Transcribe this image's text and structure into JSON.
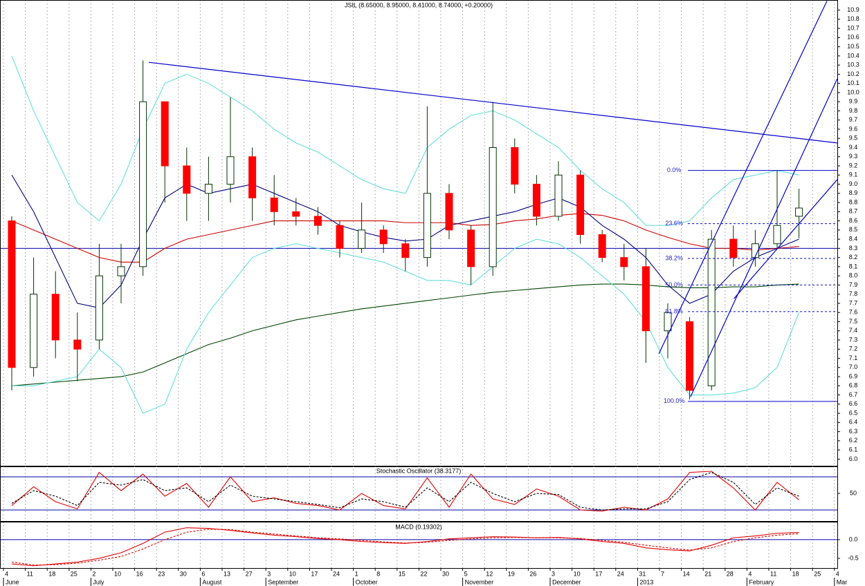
{
  "chart_data": [
    {
      "type": "candlestick",
      "title": "JSIL (8.65000, 8.95000, 8.41000, 8.74000, +0.20000)",
      "categories": [
        "4",
        "11",
        "18",
        "25",
        "2",
        "10",
        "16",
        "23",
        "30",
        "6",
        "13",
        "27",
        "3",
        "10",
        "17",
        "24",
        "1",
        "8",
        "15",
        "22",
        "30",
        "5",
        "12",
        "19",
        "26",
        "3",
        "10",
        "17",
        "24",
        "31",
        "7",
        "14",
        "21",
        "28",
        "4",
        "11",
        "18",
        "25",
        "4"
      ],
      "months": [
        "June",
        null,
        null,
        null,
        "July",
        null,
        null,
        null,
        null,
        "August",
        null,
        null,
        "September",
        null,
        null,
        null,
        "October",
        null,
        null,
        null,
        null,
        "November",
        null,
        null,
        null,
        "December",
        null,
        null,
        null,
        "2013",
        null,
        null,
        null,
        null,
        "February",
        null,
        null,
        null,
        "Mar"
      ],
      "open": [
        8.6,
        7.0,
        7.8,
        7.3,
        7.3,
        8.0,
        8.1,
        9.9,
        9.2,
        8.9,
        9.0,
        9.3,
        8.85,
        8.7,
        8.65,
        8.55,
        8.3,
        8.5,
        8.35,
        8.2,
        8.9,
        8.5,
        8.1,
        9.4,
        9.0,
        8.65,
        9.1,
        8.45,
        8.2,
        8.1,
        7.4,
        7.5,
        6.8,
        8.4,
        8.2,
        8.35,
        8.65,
        null,
        null
      ],
      "high": [
        8.65,
        8.2,
        8.05,
        7.6,
        8.35,
        8.35,
        10.35,
        9.9,
        9.4,
        9.3,
        9.95,
        9.4,
        9.1,
        8.85,
        8.75,
        8.6,
        8.8,
        8.55,
        8.4,
        9.85,
        9.0,
        8.55,
        9.9,
        9.5,
        9.1,
        9.25,
        9.15,
        8.5,
        8.35,
        8.3,
        7.7,
        7.55,
        8.5,
        8.55,
        8.5,
        9.15,
        8.95,
        null,
        null
      ],
      "low": [
        6.75,
        6.9,
        7.1,
        6.85,
        7.2,
        7.7,
        8.0,
        8.8,
        8.6,
        8.6,
        8.8,
        8.6,
        8.55,
        8.55,
        8.45,
        8.2,
        8.25,
        8.25,
        8.05,
        8.1,
        8.4,
        7.9,
        8.0,
        8.9,
        8.55,
        8.6,
        8.35,
        8.15,
        7.95,
        7.05,
        7.1,
        6.65,
        6.75,
        8.1,
        8.1,
        8.3,
        8.41,
        null,
        null
      ],
      "close": [
        7.0,
        7.8,
        7.3,
        7.2,
        8.0,
        8.1,
        9.9,
        9.2,
        8.9,
        9.0,
        9.3,
        8.85,
        8.7,
        8.65,
        8.55,
        8.3,
        8.5,
        8.35,
        8.2,
        8.9,
        8.5,
        8.1,
        9.4,
        9.0,
        8.65,
        9.1,
        8.45,
        8.2,
        8.1,
        7.4,
        7.6,
        6.75,
        8.4,
        8.2,
        8.35,
        8.55,
        8.74,
        null,
        null
      ],
      "up_color": "#ffffff",
      "down_color": "#ff0000",
      "outline_color": "#003300",
      "overlays": [
        {
          "color": "#004400",
          "values": [
            6.8,
            6.82,
            6.84,
            6.86,
            6.88,
            6.9,
            6.95,
            7.05,
            7.15,
            7.25,
            7.32,
            7.4,
            7.46,
            7.52,
            7.56,
            7.6,
            7.64,
            7.67,
            7.7,
            7.73,
            7.76,
            7.79,
            7.82,
            7.84,
            7.86,
            7.88,
            7.9,
            7.91,
            7.91,
            7.9,
            7.88,
            7.87,
            7.87,
            7.88,
            7.88,
            7.9,
            7.91,
            null,
            null
          ]
        },
        {
          "color": "#cc0000",
          "values": [
            8.6,
            8.5,
            8.4,
            8.3,
            8.2,
            8.15,
            8.15,
            8.3,
            8.4,
            8.45,
            8.5,
            8.55,
            8.6,
            8.6,
            8.6,
            8.6,
            8.6,
            8.6,
            8.58,
            8.58,
            8.58,
            8.55,
            8.56,
            8.6,
            8.62,
            8.66,
            8.68,
            8.66,
            8.6,
            8.5,
            8.42,
            8.35,
            8.3,
            8.3,
            8.28,
            8.3,
            8.32,
            null,
            null
          ]
        },
        {
          "color": "#000080",
          "values": [
            9.1,
            8.7,
            8.2,
            7.7,
            7.65,
            7.9,
            8.4,
            8.85,
            9.0,
            8.9,
            8.95,
            9.0,
            8.9,
            8.8,
            8.7,
            8.55,
            8.48,
            8.42,
            8.38,
            8.4,
            8.55,
            8.6,
            8.65,
            8.7,
            8.78,
            8.85,
            8.75,
            8.55,
            8.4,
            8.2,
            7.9,
            7.7,
            7.8,
            8.05,
            8.2,
            8.3,
            8.4,
            null,
            null
          ]
        },
        {
          "color": "#66dddd",
          "values": [
            10.4,
            9.8,
            9.3,
            8.8,
            8.6,
            9.0,
            9.6,
            10.1,
            10.2,
            10.1,
            9.95,
            9.8,
            9.6,
            9.45,
            9.35,
            9.2,
            9.05,
            8.95,
            8.9,
            9.4,
            9.6,
            9.75,
            9.8,
            9.7,
            9.55,
            9.4,
            9.15,
            8.95,
            8.8,
            8.55,
            8.55,
            8.6,
            8.85,
            9.05,
            9.1,
            9.15,
            9.1,
            null,
            null
          ]
        },
        {
          "color": "#66dddd",
          "values": [
            6.8,
            6.8,
            6.85,
            6.9,
            7.2,
            7.0,
            6.5,
            6.6,
            7.2,
            7.6,
            7.9,
            8.2,
            8.3,
            8.35,
            8.3,
            8.25,
            8.2,
            8.15,
            8.05,
            7.95,
            7.95,
            7.9,
            8.1,
            8.3,
            8.4,
            8.35,
            8.2,
            8.0,
            7.8,
            7.5,
            7.0,
            6.7,
            6.7,
            6.72,
            6.78,
            7.0,
            7.6,
            null,
            null
          ]
        }
      ],
      "reference_lines": [
        8.3
      ],
      "trendlines": [
        {
          "color": "#0000cc",
          "points": [
            [
              6.65,
              10.33
            ],
            [
              38.13,
              9.45
            ]
          ]
        },
        {
          "color": "#0000cc",
          "points": [
            [
              29.97,
              7.15
            ],
            [
              37.66,
              11.0
            ]
          ]
        },
        {
          "color": "#0000cc",
          "points": [
            [
              31.42,
              6.68
            ],
            [
              38.13,
              10.15
            ]
          ]
        },
        {
          "color": "#0000cc",
          "points": [
            [
              33.4,
              7.75
            ],
            [
              38.13,
              9.05
            ]
          ]
        }
      ],
      "fibonacci": {
        "color": "#0000cc",
        "x": [
          31.3,
          38.13
        ],
        "levels": [
          9.15,
          8.57,
          8.19,
          7.9,
          7.61,
          6.63
        ],
        "labels": [
          "0.0%",
          "23.6%",
          "38.2%",
          "50.0%",
          "61.8%",
          "100.0%"
        ]
      },
      "ylim": [
        5.92,
        11.01
      ],
      "yticks": [
        {
          "value": 6,
          "label": "6.0"
        },
        6.1,
        6.2,
        6.3,
        6.4,
        6.5,
        6.6,
        6.7,
        6.8,
        6.9,
        {
          "value": 7,
          "label": "7.0"
        },
        7.1,
        7.2,
        7.3,
        7.4,
        7.5,
        7.6,
        7.7,
        7.8,
        7.9,
        {
          "value": 8,
          "label": "8.0"
        },
        8.1,
        8.2,
        8.3,
        8.4,
        8.5,
        8.6,
        8.7,
        8.8,
        8.9,
        {
          "value": 9,
          "label": "9.0"
        },
        9.1,
        9.2,
        9.3,
        9.4,
        9.5,
        9.6,
        9.7,
        9.8,
        9.9,
        {
          "value": 10,
          "label": "10.0"
        },
        10.1,
        10.2,
        10.3,
        10.4,
        10.5,
        10.6,
        10.7,
        10.8,
        10.9
      ],
      "grid": true
    },
    {
      "type": "line",
      "title": "Stochastic Oscillator (38.3177)",
      "series": [
        {
          "color": "#e00000",
          "dashed": false,
          "values": [
            28,
            62,
            35,
            22,
            88,
            55,
            85,
            45,
            68,
            25,
            80,
            35,
            42,
            32,
            28,
            20,
            50,
            28,
            22,
            78,
            25,
            85,
            40,
            30,
            58,
            45,
            20,
            18,
            25,
            20,
            40,
            88,
            90,
            60,
            20,
            70,
            38.3177,
            null,
            null
          ]
        },
        {
          "color": "#000000",
          "dashed": true,
          "values": [
            32,
            55,
            45,
            28,
            70,
            65,
            75,
            55,
            60,
            35,
            65,
            45,
            40,
            35,
            30,
            24,
            40,
            35,
            25,
            60,
            35,
            70,
            50,
            35,
            50,
            48,
            25,
            20,
            22,
            22,
            35,
            75,
            88,
            70,
            30,
            60,
            45,
            null,
            null
          ]
        }
      ],
      "reference_lines": [
        20,
        80
      ],
      "ylim": [
        0,
        100
      ],
      "yticks": [
        50
      ]
    },
    {
      "type": "line",
      "title": "MACD (0.19302)",
      "series": [
        {
          "color": "#e00000",
          "dashed": false,
          "values": [
            -0.65,
            -0.7,
            -0.65,
            -0.6,
            -0.5,
            -0.35,
            -0.1,
            0.2,
            0.32,
            0.3,
            0.25,
            0.18,
            0.12,
            0.08,
            0.03,
            0.0,
            -0.05,
            -0.08,
            -0.1,
            -0.05,
            0.02,
            0.05,
            0.08,
            0.07,
            0.05,
            0.06,
            0.02,
            -0.05,
            -0.1,
            -0.22,
            -0.27,
            -0.3,
            -0.15,
            0.05,
            0.1,
            0.17,
            0.19302,
            null,
            null
          ]
        },
        {
          "color": "#e00000",
          "dashed": true,
          "values": [
            -0.6,
            -0.68,
            -0.67,
            -0.63,
            -0.55,
            -0.45,
            -0.25,
            0.0,
            0.2,
            0.28,
            0.27,
            0.2,
            0.15,
            0.1,
            0.05,
            0.02,
            -0.02,
            -0.06,
            -0.09,
            -0.07,
            -0.02,
            0.02,
            0.05,
            0.06,
            0.05,
            0.05,
            0.03,
            -0.02,
            -0.07,
            -0.15,
            -0.22,
            -0.28,
            -0.22,
            -0.05,
            0.05,
            0.12,
            0.16,
            null,
            null
          ]
        }
      ],
      "reference_lines": [
        0
      ],
      "ylim": [
        -0.76,
        0.48
      ],
      "yticks": [
        {
          "value": 0,
          "label": "0.0"
        },
        -0.5
      ]
    }
  ]
}
